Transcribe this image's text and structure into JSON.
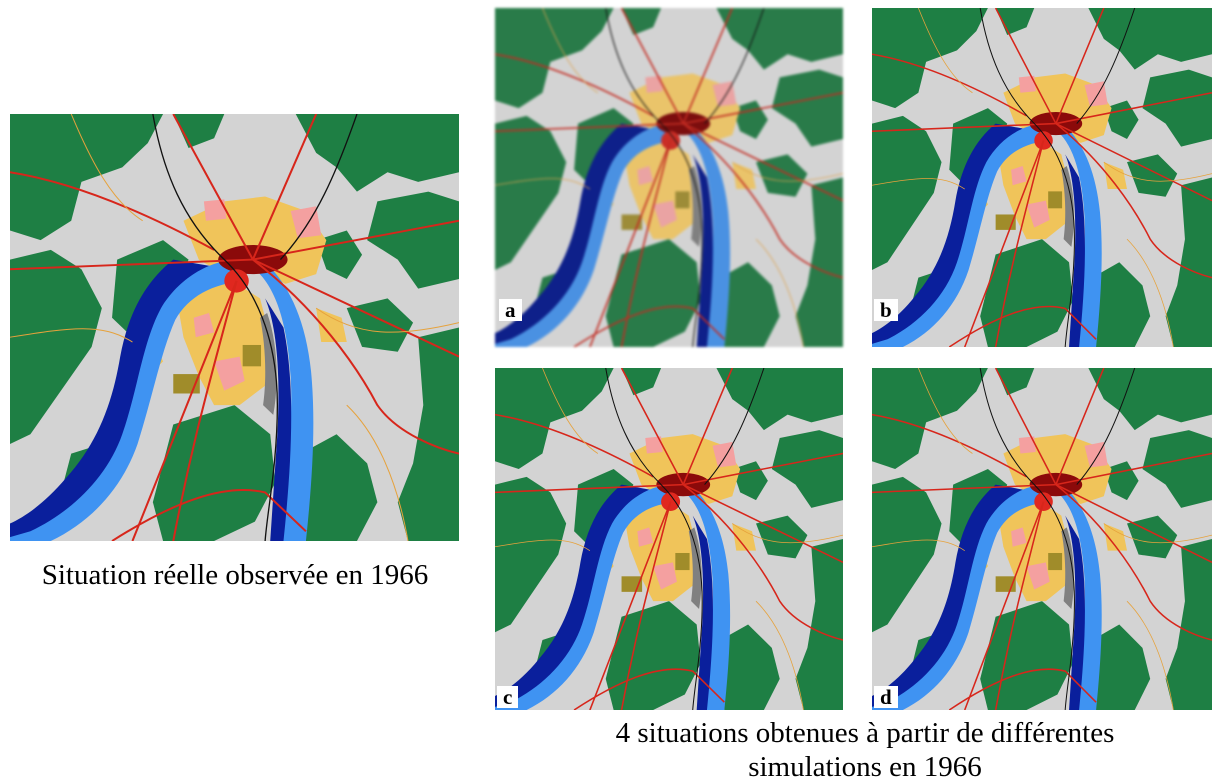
{
  "main_map": {
    "caption": "Situation réelle observée en 1966"
  },
  "simulations": {
    "panels": [
      {
        "label": "a"
      },
      {
        "label": "b"
      },
      {
        "label": "c"
      },
      {
        "label": "d"
      }
    ],
    "caption_line1": "4 situations obtenues à partir de différentes",
    "caption_line2": "simulations en 1966"
  },
  "legend_colors": {
    "background": "#d3d3d3",
    "forest": "#1e7f44",
    "urban_fabric": "#f0c45a",
    "city_center": "#8b0a0a",
    "river": "#3f93f2",
    "wetland": "#0a1f9c",
    "pink_zone": "#f4a0a0",
    "roads": "#d7261b",
    "activity": "#a08c2a"
  }
}
